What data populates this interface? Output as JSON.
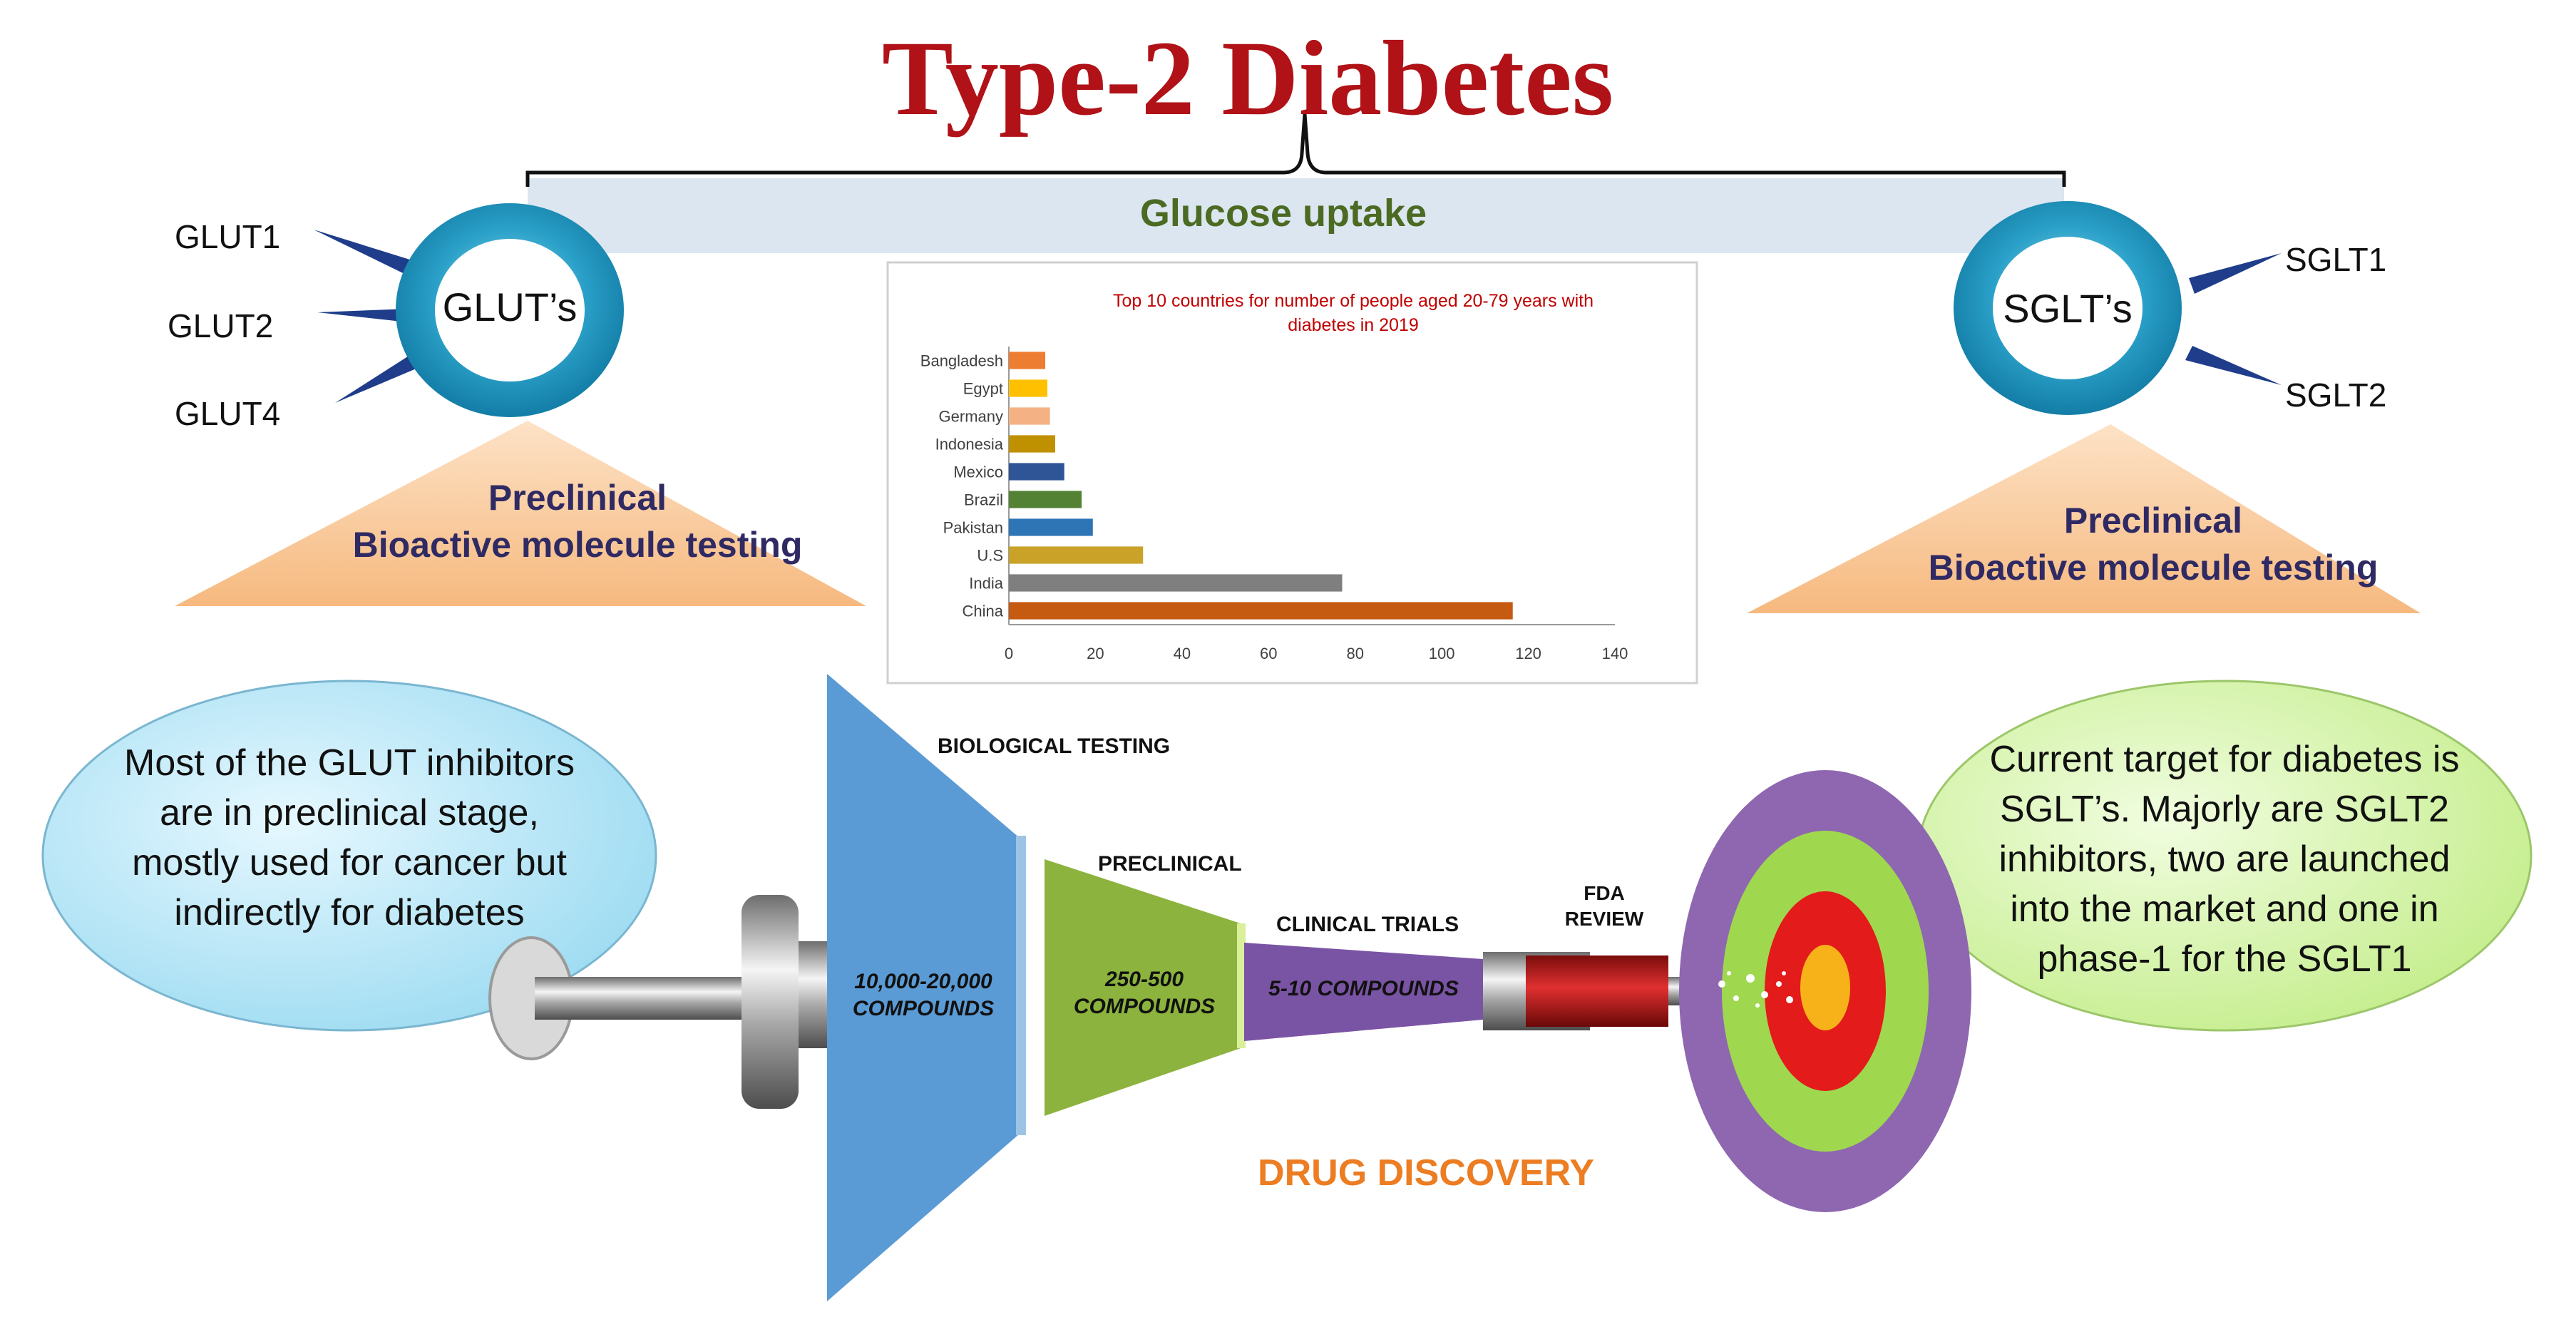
{
  "title": "Type-2 Diabetes",
  "glucose_uptake": "Glucose  uptake",
  "left_transporter": {
    "label": "GLUT’s",
    "isoforms": [
      "GLUT1",
      "GLUT2",
      "GLUT4"
    ]
  },
  "right_transporter": {
    "label": "SGLT’s",
    "isoforms": [
      "SGLT1",
      "SGLT2"
    ]
  },
  "preclinical_box": {
    "line1": "Preclinical",
    "line2": "Bioactive molecule testing"
  },
  "left_bubble": {
    "lines": [
      "Most of the GLUT inhibitors",
      "are in preclinical stage,",
      "mostly used for cancer but",
      "indirectly for diabetes"
    ]
  },
  "right_bubble": {
    "lines": [
      "Current target for diabetes is",
      "SGLT’s. Majorly  are SGLT2",
      "inhibitors, two are launched",
      "into the market and one in",
      "phase-1 for the SGLT1"
    ]
  },
  "funnel": {
    "stage1_title": "BIOLOGICAL TESTING",
    "stage1_count": [
      "10,000-20,000",
      "COMPOUNDS"
    ],
    "stage2_title": "PRECLINICAL",
    "stage2_count": [
      "250-500",
      "COMPOUNDS"
    ],
    "stage3_title": "CLINICAL TRIALS",
    "stage3_count": "5-10 COMPOUNDS",
    "fda": [
      "FDA",
      "REVIEW"
    ],
    "caption": "DRUG DISCOVERY"
  },
  "colors": {
    "title": "#b01217",
    "glucose_text": "#4b6a22",
    "ring": "#2aa0c8",
    "triangle": "#f9c99a",
    "funnel1": "#5b9bd5",
    "funnel2": "#8cb33d",
    "funnel3": "#7a54a4",
    "target_outer": "#8e67b0",
    "target_green": "#9fd84f",
    "target_red": "#e31b1b",
    "target_center": "#f7b21a"
  },
  "chart_data": {
    "type": "bar",
    "orientation": "horizontal",
    "title": "Top  10 countries for number of people aged 20-79 years with diabetes in 2019",
    "title_lines": [
      "Top  10 countries for number of people aged 20-79 years with",
      "diabetes in 2019"
    ],
    "categories": [
      "Bangladesh",
      "Egypt",
      "Germany",
      "Indonesia",
      "Mexico",
      "Brazil",
      "Pakistan",
      "U.S",
      "India",
      "China"
    ],
    "values": [
      8.4,
      8.9,
      9.5,
      10.7,
      12.8,
      16.8,
      19.4,
      31.0,
      77.0,
      116.4
    ],
    "colors": [
      "#ed7d31",
      "#ffc000",
      "#f4b183",
      "#bf9000",
      "#2f5597",
      "#548235",
      "#2e75b6",
      "#c9a227",
      "#7f7f7f",
      "#c55a11"
    ],
    "xlim": [
      0,
      140
    ],
    "xticks": [
      0,
      20,
      40,
      60,
      80,
      100,
      120,
      140
    ],
    "xlabel": "",
    "ylabel": ""
  }
}
